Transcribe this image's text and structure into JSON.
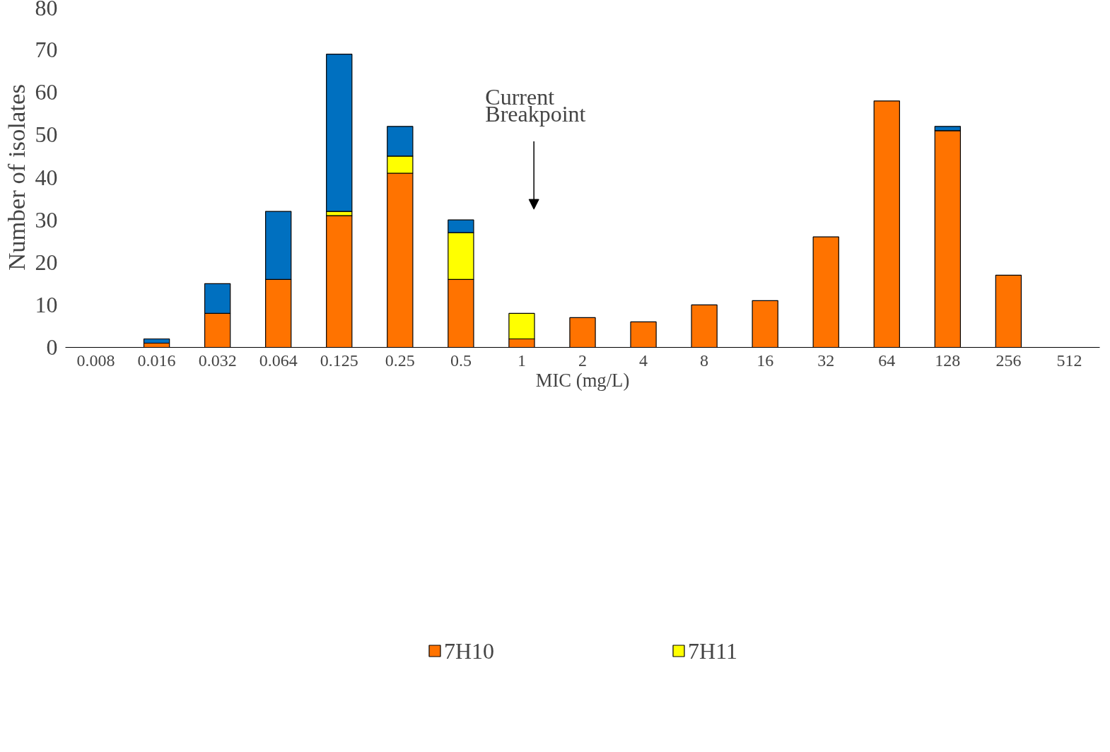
{
  "chart_data": {
    "type": "bar",
    "stacked": true,
    "xlabel": "MIC (mg/L)",
    "ylabel": "Number of isolates",
    "categories": [
      "0.008",
      "0.016",
      "0.032",
      "0.064",
      "0.125",
      "0.25",
      "0.5",
      "1",
      "2",
      "4",
      "8",
      "16",
      "32",
      "64",
      "128",
      "256",
      "512"
    ],
    "series": [
      {
        "name": "7H10",
        "color": "#ff7300",
        "values": [
          0,
          1,
          8,
          16,
          31,
          41,
          16,
          2,
          7,
          6,
          10,
          11,
          26,
          58,
          51,
          17,
          0
        ]
      },
      {
        "name": "7H11",
        "color": "#ffff00",
        "values": [
          0,
          0,
          0,
          0,
          1,
          4,
          11,
          6,
          0,
          0,
          0,
          0,
          0,
          0,
          0,
          0,
          0
        ]
      },
      {
        "color": "#0070c0",
        "values": [
          0,
          1,
          7,
          16,
          37,
          7,
          3,
          0,
          0,
          0,
          0,
          0,
          0,
          0,
          1,
          0,
          0
        ]
      }
    ],
    "ylim": [
      0,
      80
    ],
    "yticks": [
      0,
      10,
      20,
      30,
      40,
      50,
      60,
      70,
      80
    ],
    "grid": false,
    "legend": "bottom",
    "annotations": [
      "Current\nBreakpoint"
    ]
  }
}
